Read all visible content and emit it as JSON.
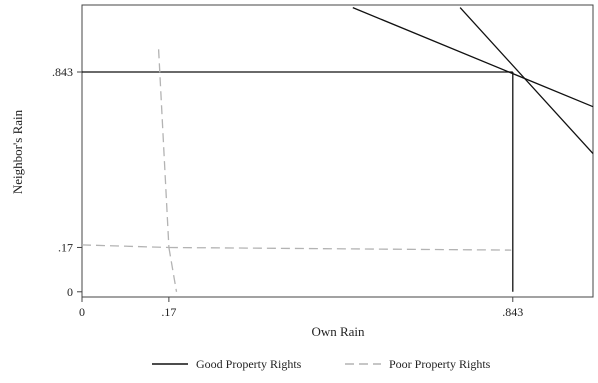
{
  "chart_data": {
    "type": "line",
    "title": "",
    "xlabel": "Own Rain",
    "ylabel": "Neighbor's Rain",
    "xlim": [
      0,
      1.0
    ],
    "ylim": [
      -0.02,
      1.1
    ],
    "x_ticks": [
      {
        "value": 0,
        "label": "0"
      },
      {
        "value": 0.17,
        "label": ".17"
      },
      {
        "value": 0.843,
        "label": ".843"
      }
    ],
    "y_ticks": [
      {
        "value": 0,
        "label": "0"
      },
      {
        "value": 0.17,
        "label": ".17"
      },
      {
        "value": 0.843,
        "label": ".843"
      }
    ],
    "grid": false,
    "legend_position": "bottom",
    "series": [
      {
        "name": "Good Property Rights",
        "color": "#111111",
        "dash": "solid",
        "segments": [
          [
            [
              0,
              0.843
            ],
            [
              0.843,
              0.843
            ]
          ],
          [
            [
              0.843,
              0.843
            ],
            [
              0.843,
              0
            ]
          ],
          [
            [
              0.53,
              1.09
            ],
            [
              1.0,
              0.71
            ]
          ],
          [
            [
              0.74,
              1.09
            ],
            [
              1.0,
              0.53
            ]
          ]
        ]
      },
      {
        "name": "Poor Property Rights",
        "color": "#b3b3b3",
        "dash": "dashed",
        "segments": [
          [
            [
              0,
              0.18
            ],
            [
              0.17,
              0.17
            ]
          ],
          [
            [
              0.17,
              0.17
            ],
            [
              0.84,
              0.16
            ]
          ],
          [
            [
              0.15,
              0.93
            ],
            [
              0.17,
              0.17
            ]
          ],
          [
            [
              0.17,
              0.17
            ],
            [
              0.185,
              0
            ]
          ]
        ]
      }
    ]
  }
}
